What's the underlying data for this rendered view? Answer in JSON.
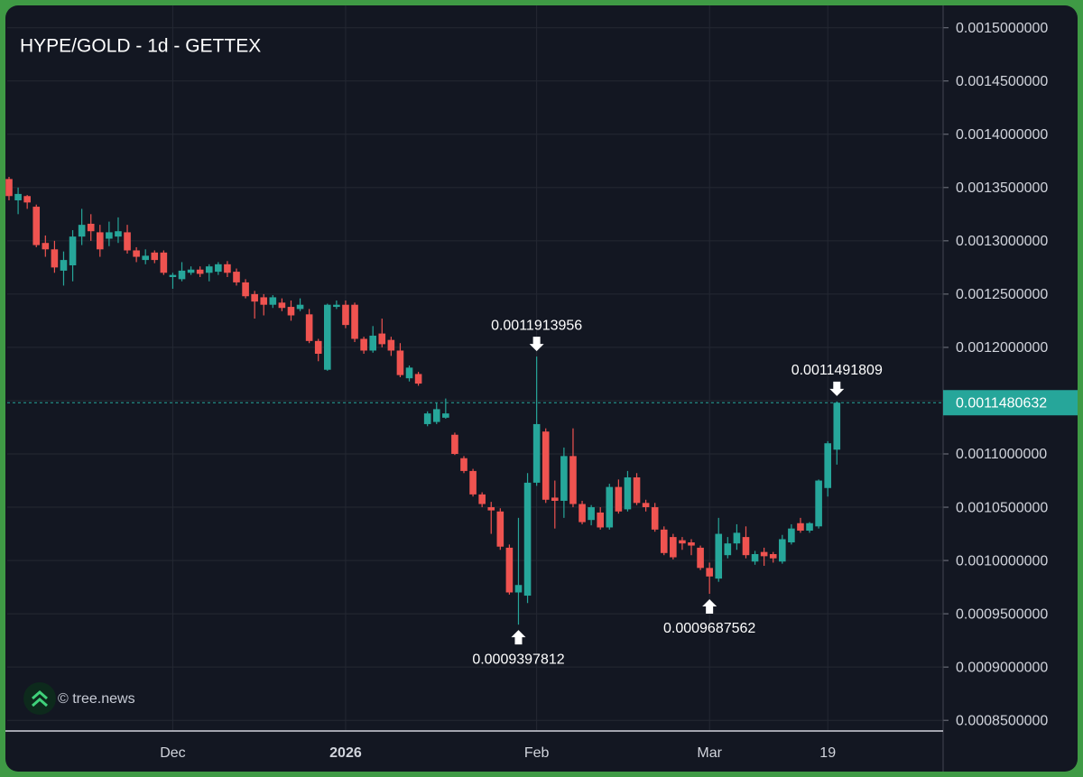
{
  "chart_data": {
    "type": "candlestick",
    "title": "HYPE/GOLD - 1d - GETTEX",
    "watermark": "© tree.news",
    "up_color": "#26a69a",
    "down_color": "#ef5350",
    "grid": true,
    "ylim": [
      0.00084,
      0.001526
    ],
    "yticks": [
      {
        "value": 0.00085,
        "label": "0.0008500000"
      },
      {
        "value": 0.0009,
        "label": "0.0009000000"
      },
      {
        "value": 0.00095,
        "label": "0.0009500000"
      },
      {
        "value": 0.001,
        "label": "0.0010000000"
      },
      {
        "value": 0.00105,
        "label": "0.0010500000"
      },
      {
        "value": 0.0011,
        "label": "0.0011000000"
      },
      {
        "value": 0.00115,
        "label": "0.0011500000"
      },
      {
        "value": 0.0012,
        "label": "0.0012000000"
      },
      {
        "value": 0.00125,
        "label": "0.0012500000"
      },
      {
        "value": 0.0013,
        "label": "0.0013000000"
      },
      {
        "value": 0.00135,
        "label": "0.0013500000"
      },
      {
        "value": 0.0014,
        "label": "0.0014000000"
      },
      {
        "value": 0.00145,
        "label": "0.0014500000"
      },
      {
        "value": 0.0015,
        "label": "0.0015000000"
      }
    ],
    "categories": [
      null,
      null,
      null,
      null,
      null,
      null,
      null,
      null,
      null,
      null,
      null,
      null,
      null,
      null,
      null,
      null,
      null,
      null,
      "Dec",
      null,
      null,
      null,
      null,
      null,
      null,
      null,
      null,
      null,
      null,
      null,
      null,
      null,
      null,
      null,
      null,
      null,
      null,
      "2026",
      null,
      null,
      null,
      null,
      null,
      null,
      null,
      null,
      null,
      null,
      null,
      null,
      null,
      null,
      null,
      null,
      null,
      null,
      null,
      null,
      "Feb",
      null,
      null,
      null,
      null,
      null,
      null,
      null,
      null,
      null,
      null,
      null,
      null,
      null,
      null,
      null,
      null,
      null,
      null,
      "Mar",
      null,
      null,
      null,
      null,
      null,
      null,
      null,
      null,
      null,
      null,
      null,
      null,
      "19",
      null
    ],
    "open": [
      0.001358,
      0.001338,
      0.001342,
      0.001332,
      0.001298,
      0.001292,
      0.001272,
      0.001277,
      0.001304,
      0.001316,
      0.001308,
      0.001302,
      0.001304,
      0.001308,
      0.001291,
      0.001282,
      0.001289,
      0.001289,
      0.001266,
      0.001264,
      0.00127,
      0.001273,
      0.00127,
      0.001271,
      0.001278,
      0.001271,
      0.001261,
      0.00125,
      0.001247,
      0.00124,
      0.001242,
      0.001238,
      0.001236,
      0.001231,
      0.001206,
      0.001179,
      0.001238,
      0.00124,
      0.00124,
      0.001208,
      0.001197,
      0.001213,
      0.001207,
      0.001197,
      0.001171,
      0.001175,
      0.001128,
      0.00113,
      0.001134,
      0.001118,
      0.001096,
      0.001084,
      0.001062,
      0.00105,
      0.001046,
      0.001012,
      0.00097,
      0.000967,
      0.001073,
      0.001121,
      0.001059,
      0.001056,
      0.001098,
      0.001053,
      0.001038,
      0.001045,
      0.001031,
      0.001069,
      0.001048,
      0.001078,
      0.001054,
      0.00105,
      0.001029,
      0.001022,
      0.001019,
      0.001017,
      0.001012,
      0.000993,
      0.000983,
      0.001005,
      0.001016,
      0.001022,
      0.000999,
      0.001008,
      0.001006,
      0.000999,
      0.001017,
      0.001035,
      0.001028,
      0.001032,
      0.001068,
      0.001104
    ],
    "high": [
      0.00136,
      0.00135,
      0.001343,
      0.001334,
      0.001305,
      0.0013,
      0.00129,
      0.00131,
      0.00133,
      0.001325,
      0.001315,
      0.001318,
      0.001322,
      0.001315,
      0.001294,
      0.001292,
      0.001291,
      0.001291,
      0.00127,
      0.00128,
      0.001276,
      0.001276,
      0.001278,
      0.00128,
      0.001281,
      0.001274,
      0.001264,
      0.001253,
      0.00125,
      0.001249,
      0.001246,
      0.001244,
      0.001246,
      0.001236,
      0.001208,
      0.001241,
      0.001244,
      0.001244,
      0.001242,
      0.00121,
      0.00122,
      0.001227,
      0.00121,
      0.001204,
      0.001183,
      0.001177,
      0.00114,
      0.001148,
      0.001152,
      0.00112,
      0.001098,
      0.001086,
      0.001064,
      0.001055,
      0.001049,
      0.001015,
      0.00104,
      0.001082,
      0.0011913956,
      0.001124,
      0.001075,
      0.001106,
      0.001124,
      0.001056,
      0.001052,
      0.00105,
      0.001072,
      0.001076,
      0.001084,
      0.001082,
      0.001057,
      0.001054,
      0.001032,
      0.001025,
      0.001022,
      0.00102,
      0.001014,
      0.000998,
      0.00104,
      0.001022,
      0.001034,
      0.001032,
      0.001009,
      0.001012,
      0.001008,
      0.001024,
      0.001034,
      0.00104,
      0.001036,
      0.001076,
      0.001112,
      0.0011491809
    ],
    "low": [
      0.001338,
      0.001325,
      0.00133,
      0.001294,
      0.001285,
      0.00127,
      0.001258,
      0.001262,
      0.001296,
      0.0013,
      0.001285,
      0.001295,
      0.001298,
      0.001288,
      0.00128,
      0.001278,
      0.001279,
      0.001268,
      0.001255,
      0.001262,
      0.001268,
      0.001266,
      0.001262,
      0.001268,
      0.001266,
      0.001258,
      0.001246,
      0.001227,
      0.00123,
      0.001237,
      0.001234,
      0.001225,
      0.001234,
      0.001204,
      0.001187,
      0.001178,
      0.001236,
      0.001218,
      0.001205,
      0.001194,
      0.001195,
      0.0012,
      0.001192,
      0.001172,
      0.001168,
      0.001164,
      0.001126,
      0.001128,
      0.001133,
      0.001099,
      0.001082,
      0.00106,
      0.00105,
      0.001025,
      0.00101,
      0.000968,
      0.0009397812,
      0.00096,
      0.00107,
      0.001054,
      0.00103,
      0.00104,
      0.00105,
      0.001034,
      0.001033,
      0.001029,
      0.001029,
      0.001044,
      0.001046,
      0.001052,
      0.001046,
      0.001027,
      0.001005,
      0.001001,
      0.00101,
      0.001005,
      0.000991,
      0.0009687562,
      0.00098,
      0.001002,
      0.00101,
      0.001002,
      0.000996,
      0.000995,
      0.000998,
      0.000997,
      0.001015,
      0.001026,
      0.001026,
      0.00103,
      0.00106,
      0.00109
    ],
    "close": [
      0.001342,
      0.001344,
      0.001336,
      0.001296,
      0.001292,
      0.001275,
      0.001282,
      0.001304,
      0.001315,
      0.001309,
      0.001292,
      0.001308,
      0.001309,
      0.001291,
      0.001285,
      0.001286,
      0.001282,
      0.00127,
      0.001268,
      0.001272,
      0.001273,
      0.001269,
      0.001276,
      0.001278,
      0.00127,
      0.001261,
      0.001248,
      0.001243,
      0.00124,
      0.001247,
      0.001237,
      0.00123,
      0.00124,
      0.001206,
      0.001194,
      0.00124,
      0.00124,
      0.001221,
      0.001208,
      0.001197,
      0.001211,
      0.001203,
      0.001197,
      0.001174,
      0.001181,
      0.001166,
      0.001138,
      0.001142,
      0.001138,
      0.0011,
      0.001084,
      0.001062,
      0.001053,
      0.001047,
      0.001013,
      0.00097,
      0.000977,
      0.001073,
      0.001128,
      0.001057,
      0.001056,
      0.001098,
      0.001053,
      0.001036,
      0.00105,
      0.001031,
      0.001069,
      0.001046,
      0.001078,
      0.001054,
      0.00105,
      0.001029,
      0.001007,
      0.001003,
      0.001016,
      0.001014,
      0.000993,
      0.000985,
      0.001025,
      0.001016,
      0.001026,
      0.001005,
      0.001006,
      0.001004,
      0.001002,
      0.00102,
      0.00103,
      0.001028,
      0.001035,
      0.001075,
      0.00111,
      0.0011480632
    ]
  }
}
